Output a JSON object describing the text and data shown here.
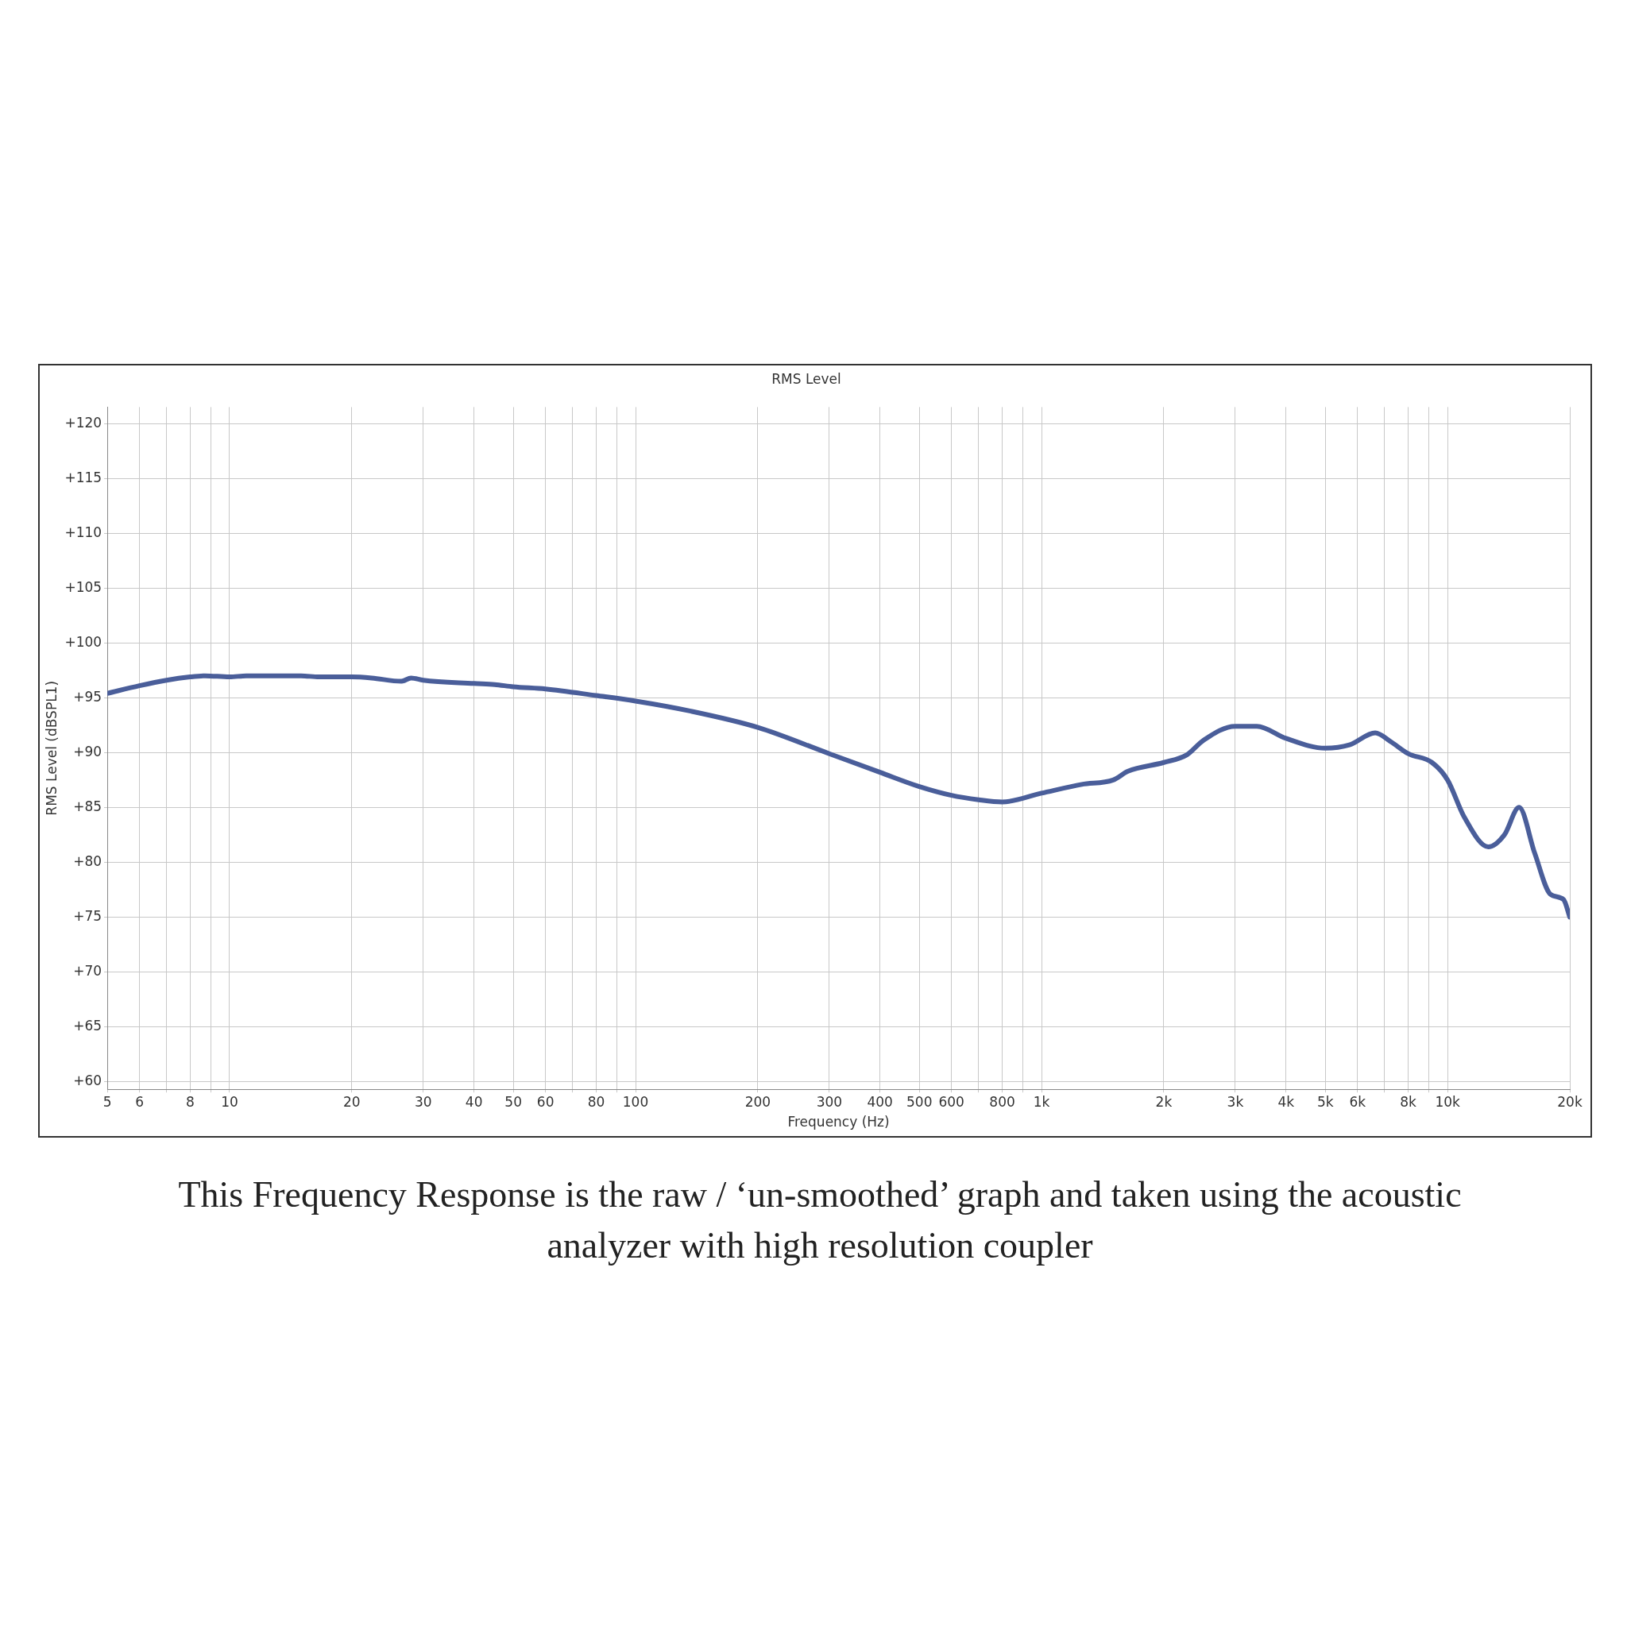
{
  "chart_data": {
    "type": "line",
    "title": "RMS Level",
    "xlabel": "Frequency (Hz)",
    "ylabel": "RMS Level (dBSPL1)",
    "annotations": [
      "This Frequency Response is the raw / ‘un-smoothed’ graph and taken using the acoustic analyzer with high resolution coupler"
    ],
    "log": "x",
    "grid": true,
    "xlim": [
      5,
      20000
    ],
    "xticks": [
      5,
      6,
      {
        "value": 7,
        "label": null
      },
      8,
      {
        "value": 9,
        "label": null
      },
      10,
      20,
      30,
      40,
      50,
      60,
      {
        "value": 70,
        "label": null
      },
      80,
      {
        "value": 90,
        "label": null
      },
      100,
      200,
      300,
      400,
      500,
      600,
      {
        "value": 700,
        "label": null
      },
      800,
      {
        "value": 900,
        "label": null
      },
      {
        "value": 1000,
        "label": "1k"
      },
      {
        "value": 2000,
        "label": "2k"
      },
      {
        "value": 3000,
        "label": "3k"
      },
      {
        "value": 4000,
        "label": "4k"
      },
      {
        "value": 5000,
        "label": "5k"
      },
      {
        "value": 6000,
        "label": "6k"
      },
      {
        "value": 7000,
        "label": null
      },
      {
        "value": 8000,
        "label": "8k"
      },
      {
        "value": 9000,
        "label": null
      },
      {
        "value": 10000,
        "label": "10k"
      },
      {
        "value": 20000,
        "label": "20k"
      }
    ],
    "ylim": [
      59.3,
      121.5
    ],
    "yticks": [
      {
        "value": 60,
        "label": "+60"
      },
      {
        "value": 65,
        "label": "+65"
      },
      {
        "value": 70,
        "label": "+70"
      },
      {
        "value": 75,
        "label": "+75"
      },
      {
        "value": 80,
        "label": "+80"
      },
      {
        "value": 85,
        "label": "+85"
      },
      {
        "value": 90,
        "label": "+90"
      },
      {
        "value": 95,
        "label": "+95"
      },
      {
        "value": 100,
        "label": "+100"
      },
      {
        "value": 105,
        "label": "+105"
      },
      {
        "value": 110,
        "label": "+110"
      },
      {
        "value": 115,
        "label": "+115"
      },
      {
        "value": 120,
        "label": "+120"
      }
    ],
    "x": [
      5,
      6,
      7,
      8,
      8.7,
      10,
      11,
      15,
      16.6,
      20,
      22.4,
      26.5,
      28,
      30,
      40,
      45,
      50,
      60,
      80,
      100,
      136,
      200,
      300,
      400,
      500,
      600,
      700,
      800,
      1000,
      1256,
      1500,
      1633,
      2000,
      2280,
      2500,
      3000,
      3390,
      4000,
      5000,
      5730,
      6635,
      7240,
      8000,
      9150,
      10000,
      11000,
      12600,
      13800,
      15000,
      16400,
      17900,
      19300,
      20000
    ],
    "series": [
      {
        "color": "#4a5e9a",
        "values": [
          95.4,
          96.1,
          96.6,
          96.9,
          97.0,
          96.9,
          97.0,
          97.0,
          96.9,
          96.9,
          96.8,
          96.5,
          96.8,
          96.6,
          96.3,
          96.2,
          96.0,
          95.8,
          95.2,
          94.7,
          93.8,
          92.3,
          89.9,
          88.2,
          86.9,
          86.1,
          85.7,
          85.5,
          86.3,
          87.1,
          87.5,
          88.3,
          89.1,
          89.8,
          91.1,
          92.4,
          92.4,
          91.3,
          90.4,
          90.7,
          91.8,
          91.0,
          89.9,
          89.1,
          87.5,
          84.1,
          81.4,
          82.5,
          85.0,
          80.8,
          77.1,
          76.6,
          75.0
        ]
      }
    ]
  }
}
